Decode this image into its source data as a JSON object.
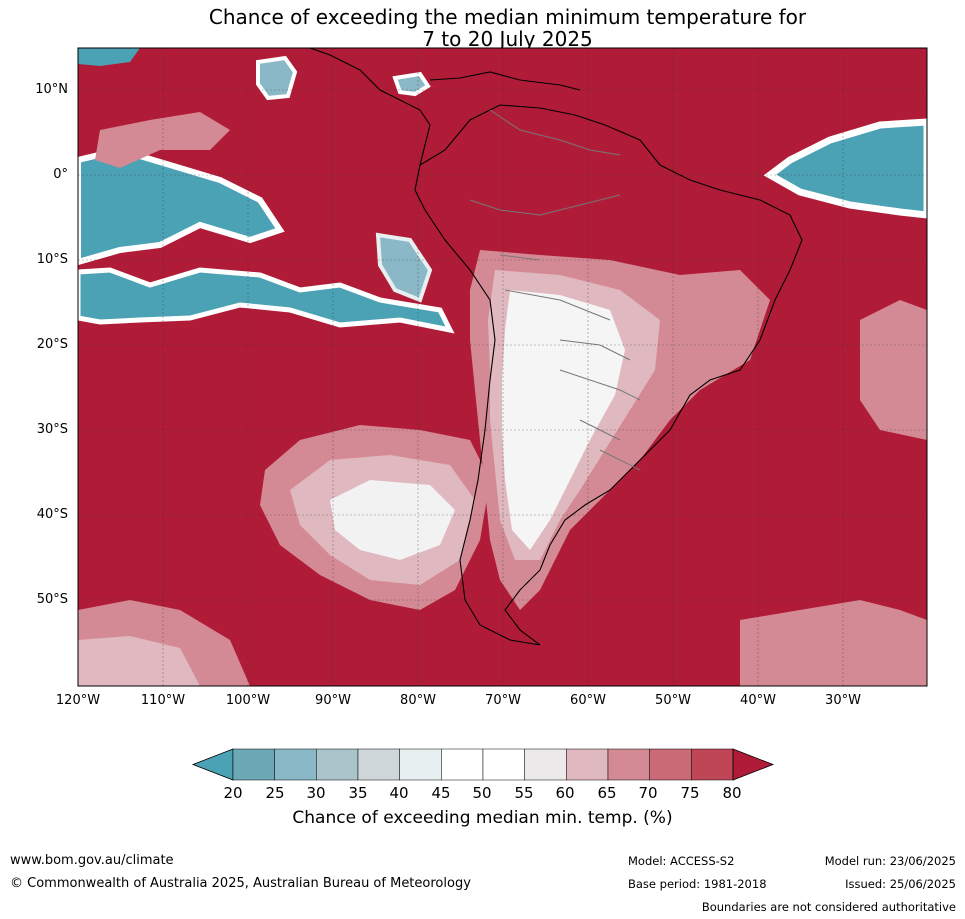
{
  "title": {
    "line1": "Chance of exceeding the median minimum temperature for",
    "line2": "7 to 20 July 2025"
  },
  "map": {
    "lat_labels": [
      "10°N",
      "0°",
      "10°S",
      "20°S",
      "30°S",
      "40°S",
      "50°S"
    ],
    "lon_labels": [
      "120°W",
      "110°W",
      "100°W",
      "90°W",
      "80°W",
      "70°W",
      "60°W",
      "50°W",
      "40°W",
      "30°W"
    ]
  },
  "colorbar": {
    "ticks": [
      "20",
      "25",
      "30",
      "35",
      "40",
      "45",
      "50",
      "55",
      "60",
      "65",
      "70",
      "75",
      "80"
    ],
    "colors": [
      "#4ba2b4",
      "#6ba9b6",
      "#8bb8c6",
      "#a9c4cb",
      "#d0d7da",
      "#e8eff1",
      "#ffffff",
      "#ffffff",
      "#ebe9ea",
      "#e0b8bf",
      "#d48a95",
      "#c96a76",
      "#bf4656",
      "#b01c37"
    ],
    "label": "Chance of exceeding median min. temp. (%)"
  },
  "footer": {
    "url": "www.bom.gov.au/climate",
    "copyright": "© Commonwealth of Australia 2025, Australian Bureau of Meteorology",
    "model": "Model: ACCESS-S2",
    "base_period": "Base period: 1981-2018",
    "model_run": "Model run: 23/06/2025",
    "issued": "Issued: 25/06/2025",
    "disclaimer": "Boundaries are not considered authoritative"
  }
}
